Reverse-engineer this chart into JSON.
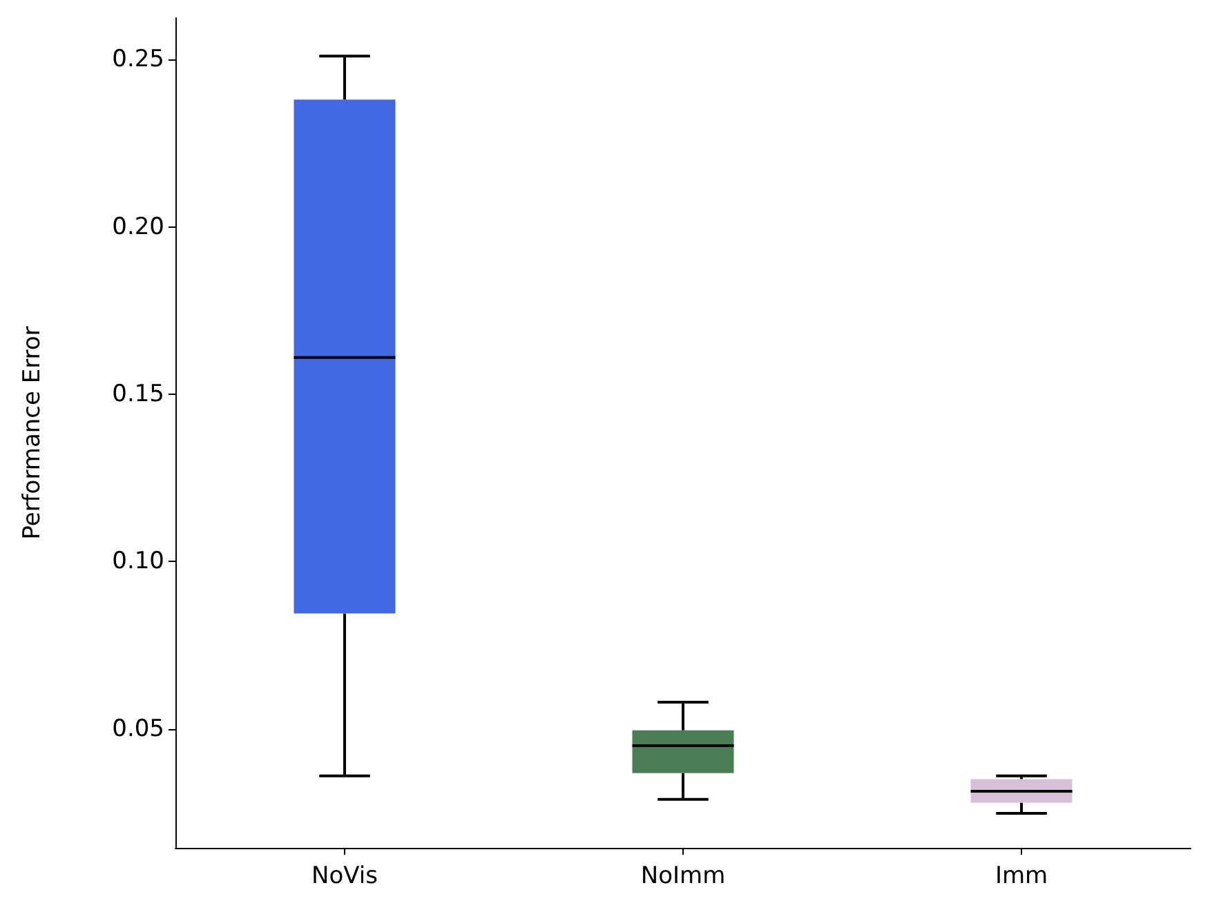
{
  "chart_data": {
    "type": "box",
    "ylabel": "Performance Error",
    "categories": [
      "NoVis",
      "NoImm",
      "Imm"
    ],
    "boxes": [
      {
        "low": 0.036,
        "q1": 0.0845,
        "median": 0.161,
        "q3": 0.238,
        "high": 0.251
      },
      {
        "low": 0.029,
        "q1": 0.0368,
        "median": 0.045,
        "q3": 0.0496,
        "high": 0.058
      },
      {
        "low": 0.0248,
        "q1": 0.028,
        "median": 0.0314,
        "q3": 0.035,
        "high": 0.036
      }
    ],
    "colors": [
      "#4169e1",
      "#4a7f55",
      "#d8bfd8"
    ],
    "ylim": [
      0.0145,
      0.2624
    ],
    "yticks": [
      {
        "value": 0.05,
        "label": "0.05"
      },
      {
        "value": 0.1,
        "label": "0.10"
      },
      {
        "value": 0.15,
        "label": "0.15"
      },
      {
        "value": 0.2,
        "label": "0.20"
      },
      {
        "value": 0.25,
        "label": "0.25"
      }
    ],
    "grid": false
  }
}
